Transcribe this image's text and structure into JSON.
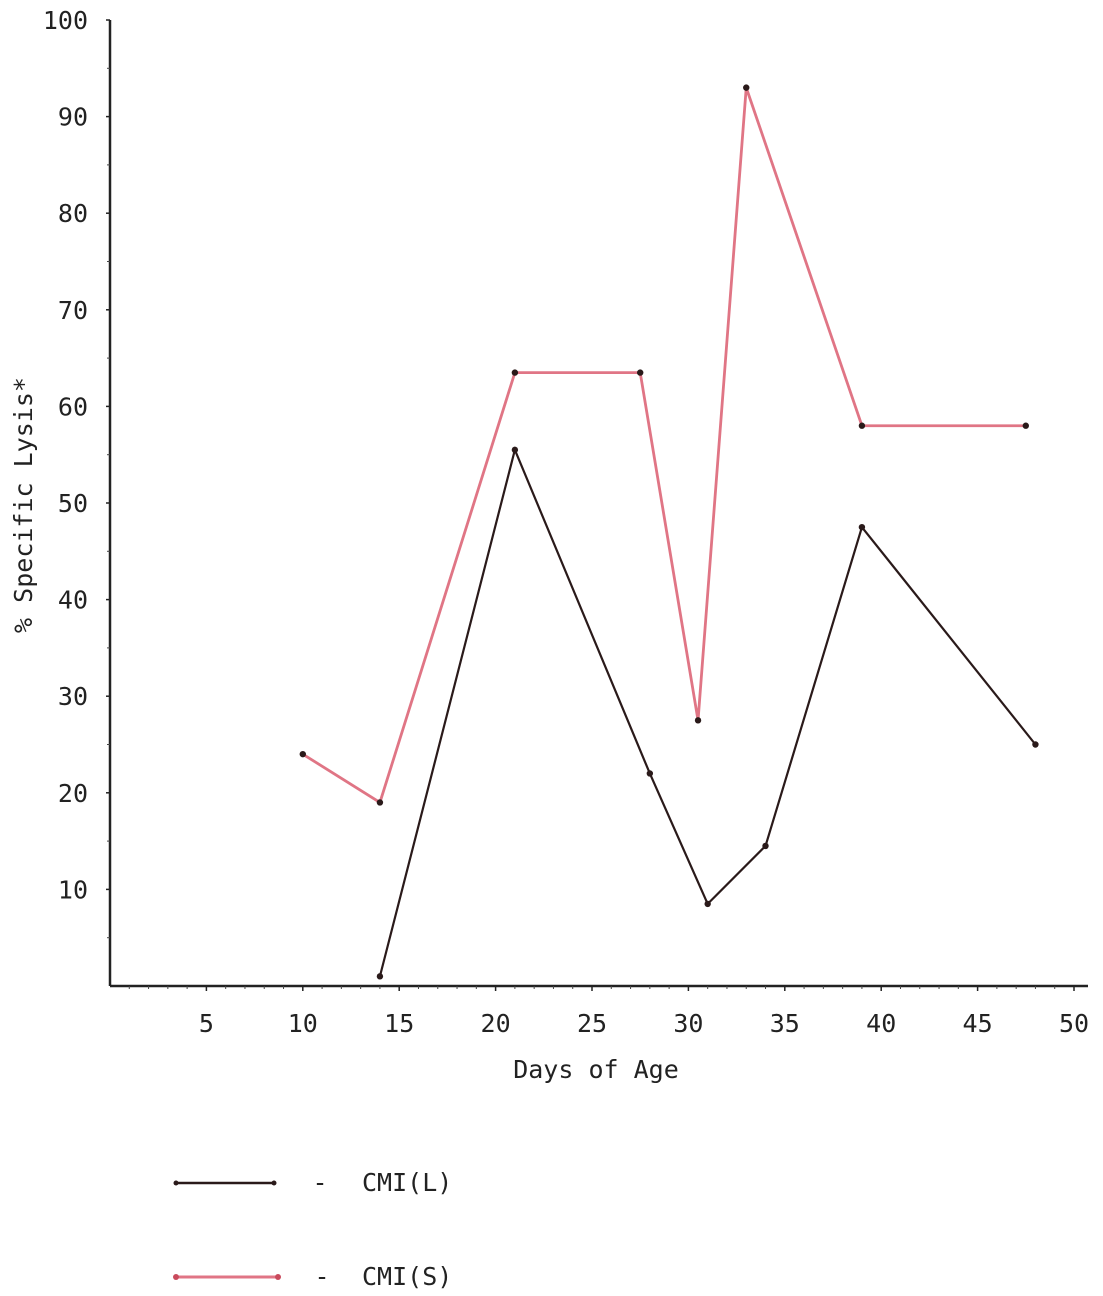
{
  "chart_data": {
    "type": "line",
    "xlabel": "Days of Age",
    "ylabel": "% Specific Lysis*",
    "xlim": [
      0,
      50
    ],
    "ylim": [
      0,
      100
    ],
    "xticks": [
      "5",
      "10",
      "15",
      "20",
      "25",
      "30",
      "35",
      "40",
      "45",
      "50"
    ],
    "yticks": [
      "10",
      "20",
      "30",
      "40",
      "50",
      "60",
      "70",
      "80",
      "90",
      "100"
    ],
    "grid": false,
    "legend_position": "bottom-left",
    "series": [
      {
        "name": "CMI(L)",
        "color": "#2a1a1a",
        "x": [
          14,
          21,
          28,
          31,
          34,
          39,
          48
        ],
        "y": [
          1,
          55.5,
          22,
          8.5,
          14.5,
          47.5,
          25
        ]
      },
      {
        "name": "CMI(S)",
        "color": "#e07585",
        "x": [
          10,
          14,
          21,
          27.5,
          30.5,
          33,
          39,
          47.5
        ],
        "y": [
          24,
          19,
          63.5,
          63.5,
          27.5,
          93,
          58,
          58
        ]
      }
    ],
    "legend": [
      {
        "dash": "-",
        "label": "CMI(L)"
      },
      {
        "dash": "-",
        "label": "CMI(S)"
      }
    ]
  }
}
